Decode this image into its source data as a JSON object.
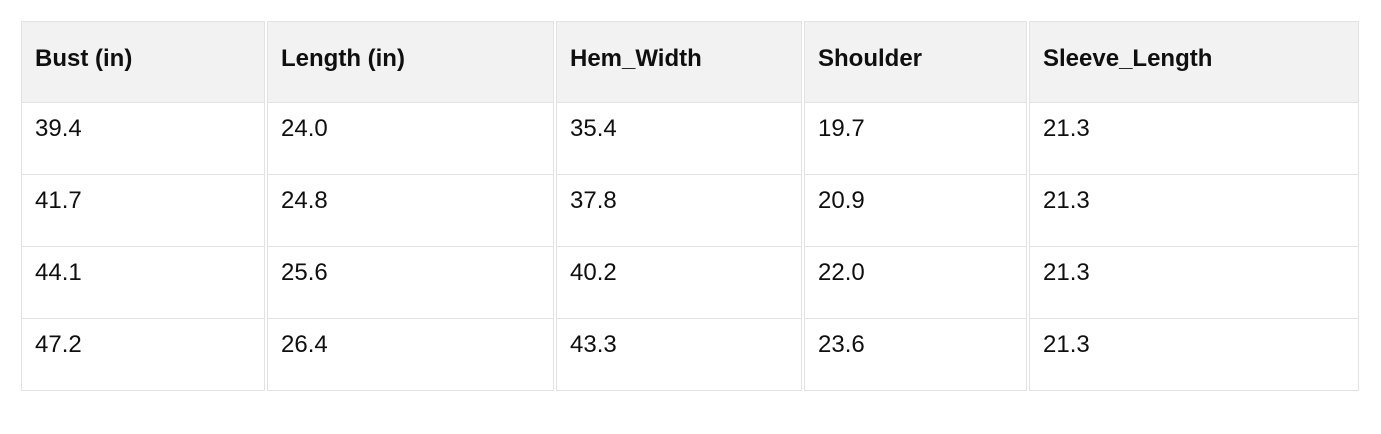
{
  "colors": {
    "background": "#ffffff",
    "header_bg": "#f2f2f2",
    "border": "#e2e2e2",
    "text": "#0f0f0f"
  },
  "table": {
    "columns": [
      {
        "label": "Bust (in)"
      },
      {
        "label": "Length (in)"
      },
      {
        "label": "Hem_Width"
      },
      {
        "label": "Shoulder"
      },
      {
        "label": "Sleeve_Length"
      }
    ],
    "rows": [
      [
        "39.4",
        "24.0",
        "35.4",
        "19.7",
        "21.3"
      ],
      [
        "41.7",
        "24.8",
        "37.8",
        "20.9",
        "21.3"
      ],
      [
        "44.1",
        "25.6",
        "40.2",
        "22.0",
        "21.3"
      ],
      [
        "47.2",
        "26.4",
        "43.3",
        "23.6",
        "21.3"
      ]
    ]
  }
}
